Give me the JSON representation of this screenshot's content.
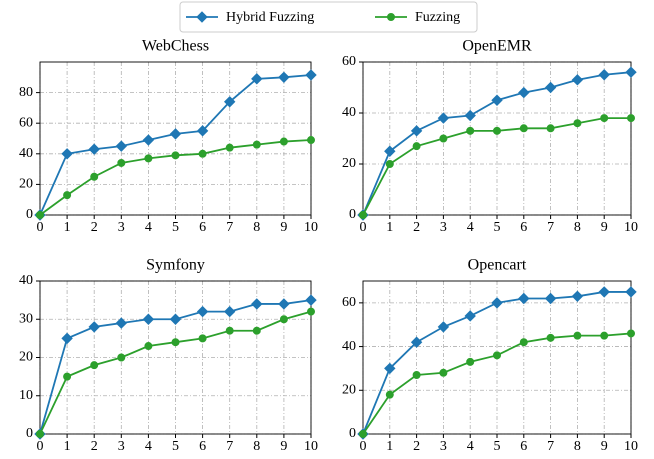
{
  "chart_data": [
    {
      "type": "line",
      "title": "WebChess",
      "x": [
        0,
        1,
        2,
        3,
        4,
        5,
        6,
        7,
        8,
        9,
        10
      ],
      "series": [
        {
          "name": "Hybrid Fuzzing",
          "color": "#1f77b4",
          "marker": "diamond",
          "values": [
            0,
            40,
            43,
            45,
            49,
            53,
            55,
            74,
            89,
            90,
            91.5
          ]
        },
        {
          "name": "Fuzzing",
          "color": "#2ca02c",
          "marker": "circle",
          "values": [
            0,
            13,
            25,
            34,
            37,
            39,
            40,
            44,
            46,
            48,
            49
          ]
        }
      ],
      "xlim": [
        0,
        10
      ],
      "xticks": [
        0,
        1,
        2,
        3,
        4,
        5,
        6,
        7,
        8,
        9,
        10
      ],
      "ylim": [
        0,
        100
      ],
      "yticks": [
        0,
        20,
        40,
        60,
        80
      ],
      "grid": true
    },
    {
      "type": "line",
      "title": "OpenEMR",
      "x": [
        0,
        1,
        2,
        3,
        4,
        5,
        6,
        7,
        8,
        9,
        10
      ],
      "series": [
        {
          "color": "#1f77b4",
          "marker": "diamond",
          "values": [
            0,
            25,
            33,
            38,
            39,
            45,
            48,
            50,
            53,
            55,
            56
          ]
        },
        {
          "color": "#2ca02c",
          "marker": "circle",
          "values": [
            0,
            20,
            27,
            30,
            33,
            33,
            34,
            34,
            36,
            38,
            38
          ]
        }
      ],
      "xlim": [
        0,
        10
      ],
      "xticks": [
        0,
        1,
        2,
        3,
        4,
        5,
        6,
        7,
        8,
        9,
        10
      ],
      "ylim": [
        0,
        60
      ],
      "yticks": [
        0,
        20,
        40,
        60
      ],
      "grid": true
    },
    {
      "type": "line",
      "title": "Symfony",
      "x": [
        0,
        1,
        2,
        3,
        4,
        5,
        6,
        7,
        8,
        9,
        10
      ],
      "series": [
        {
          "color": "#1f77b4",
          "marker": "diamond",
          "values": [
            0,
            25,
            28,
            29,
            30,
            30,
            32,
            32,
            34,
            34,
            35
          ]
        },
        {
          "color": "#2ca02c",
          "marker": "circle",
          "values": [
            0,
            15,
            18,
            20,
            23,
            24,
            25,
            27,
            27,
            30,
            32
          ]
        }
      ],
      "xlim": [
        0,
        10
      ],
      "xticks": [
        0,
        1,
        2,
        3,
        4,
        5,
        6,
        7,
        8,
        9,
        10
      ],
      "ylim": [
        0,
        40
      ],
      "yticks": [
        0,
        10,
        20,
        30,
        40
      ],
      "grid": true
    },
    {
      "type": "line",
      "title": "Opencart",
      "x": [
        0,
        1,
        2,
        3,
        4,
        5,
        6,
        7,
        8,
        9,
        10
      ],
      "series": [
        {
          "color": "#1f77b4",
          "marker": "diamond",
          "values": [
            0,
            30,
            42,
            49,
            54,
            60,
            62,
            62,
            63,
            65,
            65
          ]
        },
        {
          "color": "#2ca02c",
          "marker": "circle",
          "values": [
            0,
            18,
            27,
            28,
            33,
            36,
            42,
            44,
            45,
            45,
            46
          ]
        }
      ],
      "xlim": [
        0,
        10
      ],
      "xticks": [
        0,
        1,
        2,
        3,
        4,
        5,
        6,
        7,
        8,
        9,
        10
      ],
      "ylim": [
        0,
        70
      ],
      "yticks": [
        0,
        20,
        40,
        60
      ],
      "grid": true
    }
  ]
}
